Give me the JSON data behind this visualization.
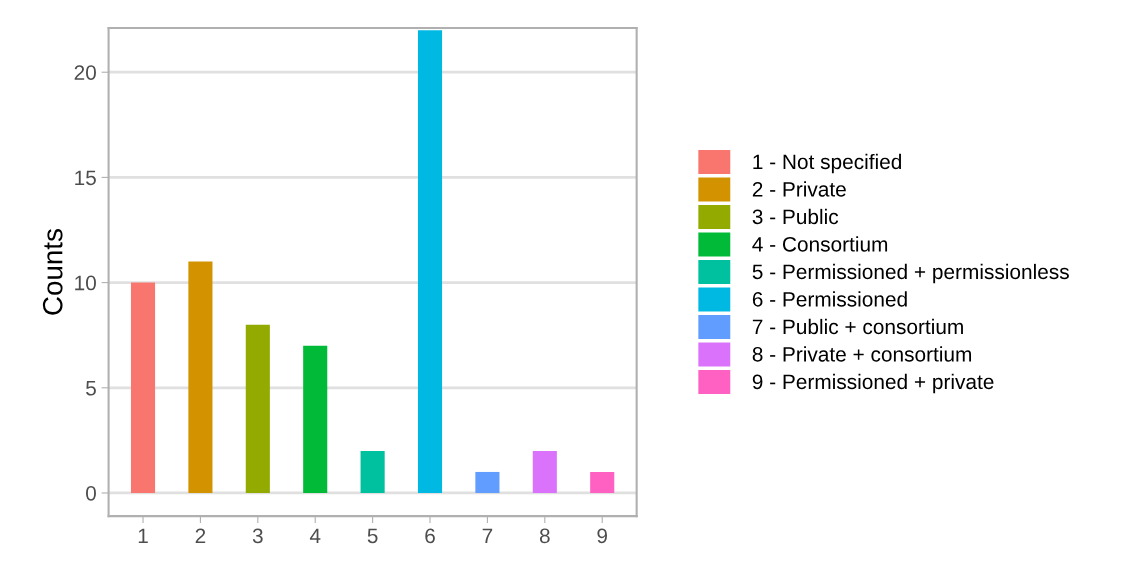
{
  "chart_data": {
    "type": "bar",
    "ylabel": "Counts",
    "categories": [
      "1",
      "2",
      "3",
      "4",
      "5",
      "6",
      "7",
      "8",
      "9"
    ],
    "series": [
      {
        "name": "1 - Not specified",
        "color": "#f8766d",
        "values": [
          10,
          null,
          null,
          null,
          null,
          null,
          null,
          null,
          null
        ]
      },
      {
        "name": "2 - Private",
        "color": "#d39200",
        "values": [
          null,
          11,
          null,
          null,
          null,
          null,
          null,
          null,
          null
        ]
      },
      {
        "name": "3 - Public",
        "color": "#93aa00",
        "values": [
          null,
          null,
          8,
          null,
          null,
          null,
          null,
          null,
          null
        ]
      },
      {
        "name": "4 - Consortium",
        "color": "#00ba38",
        "values": [
          null,
          null,
          null,
          7,
          null,
          null,
          null,
          null,
          null
        ]
      },
      {
        "name": "5 - Permissioned + permissionless",
        "color": "#00c19f",
        "values": [
          null,
          null,
          null,
          null,
          2,
          null,
          null,
          null,
          null
        ]
      },
      {
        "name": "6 - Permissioned",
        "color": "#00b9e3",
        "values": [
          null,
          null,
          null,
          null,
          null,
          22,
          null,
          null,
          null
        ]
      },
      {
        "name": "7 - Public + consortium",
        "color": "#619cff",
        "values": [
          null,
          null,
          null,
          null,
          null,
          null,
          1,
          null,
          null
        ]
      },
      {
        "name": "8 - Private + consortium",
        "color": "#db72fb",
        "values": [
          null,
          null,
          null,
          null,
          null,
          null,
          null,
          2,
          null
        ]
      },
      {
        "name": "9 - Permissioned + private",
        "color": "#ff61c3",
        "values": [
          null,
          null,
          null,
          null,
          null,
          null,
          null,
          null,
          1
        ]
      }
    ],
    "ylim": [
      -1.1,
      22.1
    ],
    "yticks": [
      0,
      5,
      10,
      15,
      20
    ],
    "grid": "y",
    "legend": "right"
  }
}
